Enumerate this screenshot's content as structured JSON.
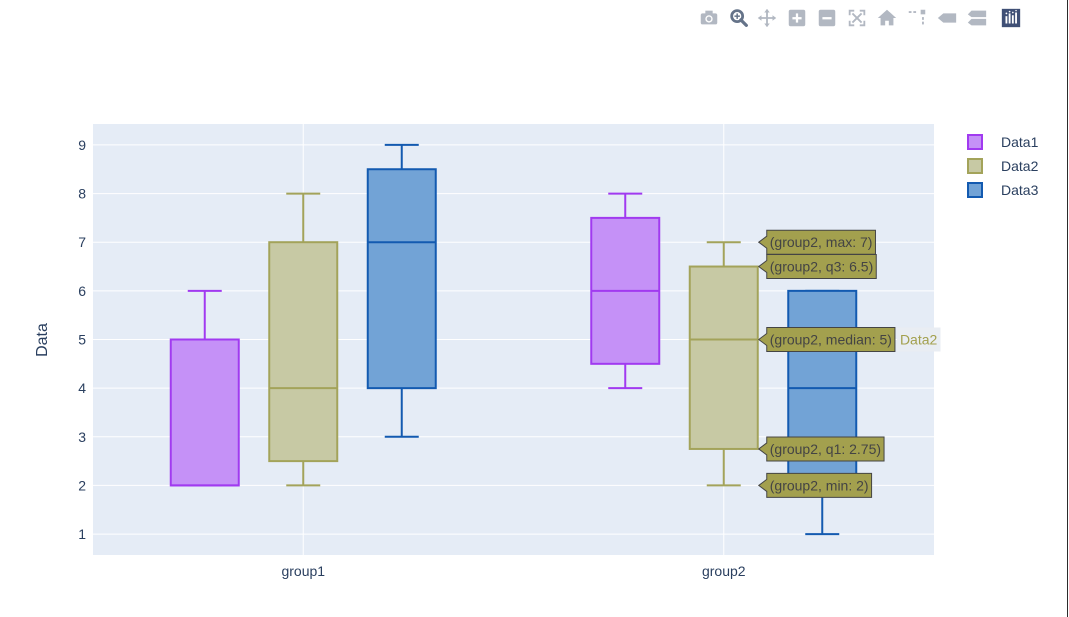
{
  "modebar": {
    "buttons": [
      {
        "name": "camera-icon",
        "title": "Download plot as a png"
      },
      {
        "name": "zoom-icon",
        "title": "Zoom"
      },
      {
        "name": "pan-icon",
        "title": "Pan"
      },
      {
        "name": "zoom-in-icon",
        "title": "Zoom in"
      },
      {
        "name": "zoom-out-icon",
        "title": "Zoom out"
      },
      {
        "name": "autoscale-icon",
        "title": "Autoscale"
      },
      {
        "name": "home-icon",
        "title": "Reset axes"
      },
      {
        "name": "spike-lines-icon",
        "title": "Toggle Spike Lines"
      },
      {
        "name": "hover-closest-icon",
        "title": "Show closest data on hover"
      },
      {
        "name": "hover-compare-icon",
        "title": "Compare data on hover"
      },
      {
        "name": "plotly-logo-icon",
        "title": "Produced with Plotly"
      }
    ],
    "icon_color": "#b2b8c2",
    "active_color": "#657389"
  },
  "chart_data": {
    "type": "box",
    "categories": [
      "group1",
      "group2"
    ],
    "ylabel": "Data",
    "xlabel": "",
    "ylim": [
      0.57,
      9.43
    ],
    "yticks": [
      1,
      2,
      3,
      4,
      5,
      6,
      7,
      8,
      9
    ],
    "grid": true,
    "legend_position": "top-right",
    "plot_bgcolor": "#e5ecf6",
    "series": [
      {
        "name": "Data1",
        "color": "#a13af0",
        "fill": "#c591f7",
        "boxes": [
          {
            "category": "group1",
            "min": 2,
            "q1": 2,
            "median": 2,
            "q3": 5,
            "max": 6
          },
          {
            "category": "group2",
            "min": 4,
            "q1": 4.5,
            "median": 6,
            "q3": 7.5,
            "max": 8
          }
        ]
      },
      {
        "name": "Data2",
        "color": "#a3a35a",
        "fill": "#c7c9a4",
        "boxes": [
          {
            "category": "group1",
            "min": 2,
            "q1": 2.5,
            "median": 4,
            "q3": 7,
            "max": 8
          },
          {
            "category": "group2",
            "min": 2,
            "q1": 2.75,
            "median": 5,
            "q3": 6.5,
            "max": 7
          }
        ]
      },
      {
        "name": "Data3",
        "color": "#135ab0",
        "fill": "#72a3d6",
        "boxes": [
          {
            "category": "group1",
            "min": 3,
            "q1": 4,
            "median": 7,
            "q3": 8.5,
            "max": 9
          },
          {
            "category": "group2",
            "min": 1,
            "q1": 2,
            "median": 4,
            "q3": 6,
            "max": 6
          }
        ]
      }
    ],
    "hover": {
      "series": "Data2",
      "category": "group2",
      "bgcolor": "#a3a04e",
      "series_label": "Data2",
      "labels": [
        {
          "text": "(group2, max: 7)",
          "y": 7
        },
        {
          "text": "(group2, q3: 6.5)",
          "y": 6.5
        },
        {
          "text": "(group2, median: 5)",
          "y": 5
        },
        {
          "text": "(group2, q1: 2.75)",
          "y": 2.75
        },
        {
          "text": "(group2, min: 2)",
          "y": 2
        }
      ]
    }
  }
}
